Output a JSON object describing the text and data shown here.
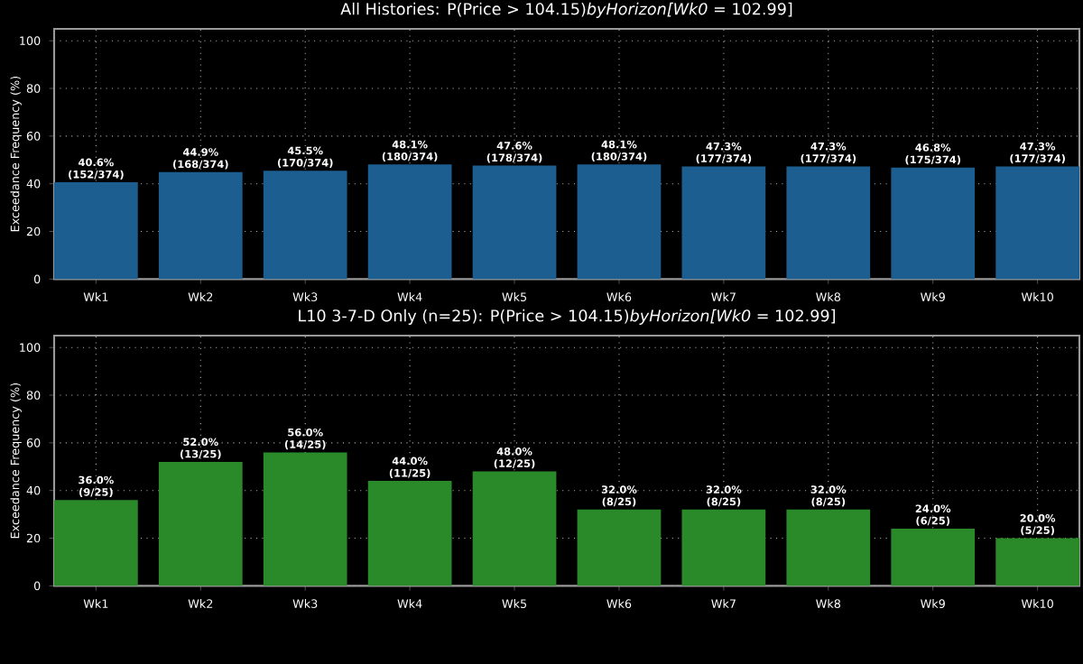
{
  "chart_data": [
    {
      "type": "bar",
      "title": "All Histories: P(Price > 104.15)*byHorizon[Wk0* = 102.99]",
      "ylabel": "Exceedance Frequency (%)",
      "categories": [
        "Wk1",
        "Wk2",
        "Wk3",
        "Wk4",
        "Wk5",
        "Wk6",
        "Wk7",
        "Wk8",
        "Wk9",
        "Wk10"
      ],
      "values": [
        40.6,
        44.9,
        45.5,
        48.1,
        47.6,
        48.1,
        47.3,
        47.3,
        46.8,
        47.3
      ],
      "value_labels": [
        "40.6% (152/374)",
        "44.9% (168/374)",
        "45.5% (170/374)",
        "48.1% (180/374)",
        "47.6% (178/374)",
        "48.1% (180/374)",
        "47.3% (177/374)",
        "47.3% (177/374)",
        "46.8% (175/374)",
        "47.3% (177/374)"
      ],
      "color": "#1b5e8f",
      "ylim": [
        0,
        105
      ],
      "yticks": [
        0,
        20,
        40,
        60,
        80,
        100
      ],
      "grid": true
    },
    {
      "type": "bar",
      "title": "L10 3-7-D Only (n=25): P(Price > 104.15)*byHorizon[Wk0* = 102.99]",
      "ylabel": "Exceedance Frequency (%)",
      "categories": [
        "Wk1",
        "Wk2",
        "Wk3",
        "Wk4",
        "Wk5",
        "Wk6",
        "Wk7",
        "Wk8",
        "Wk9",
        "Wk10"
      ],
      "values": [
        36.0,
        52.0,
        56.0,
        44.0,
        48.0,
        32.0,
        32.0,
        32.0,
        24.0,
        20.0
      ],
      "value_labels": [
        "36.0% (9/25)",
        "52.0% (13/25)",
        "56.0% (14/25)",
        "44.0% (11/25)",
        "48.0% (12/25)",
        "32.0% (8/25)",
        "32.0% (8/25)",
        "32.0% (8/25)",
        "24.0% (6/25)",
        "20.0% (5/25)"
      ],
      "color": "#2a8a2a",
      "ylim": [
        0,
        105
      ],
      "yticks": [
        0,
        20,
        40,
        60,
        80,
        100
      ],
      "grid": true
    }
  ]
}
